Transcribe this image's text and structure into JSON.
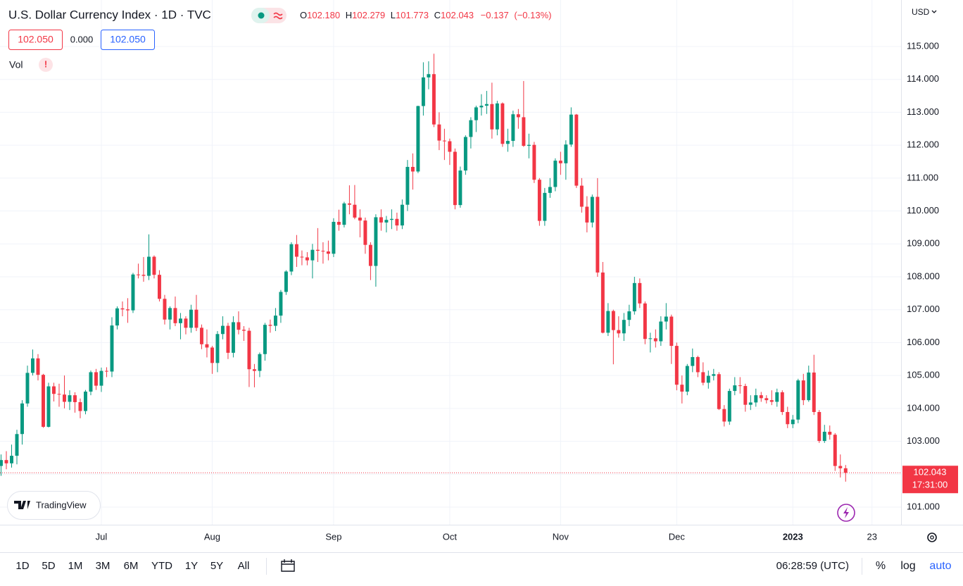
{
  "header": {
    "title": "U.S. Dollar Currency Index · 1D · TVC",
    "ohlc": [
      {
        "key": "O",
        "value": "102.180"
      },
      {
        "key": "H",
        "value": "102.279"
      },
      {
        "key": "L",
        "value": "101.773"
      },
      {
        "key": "C",
        "value": "102.043"
      }
    ],
    "change": "−0.137",
    "change_pct": "(−0.13%)"
  },
  "price_boxes": [
    "102.050",
    "0.000",
    "102.050"
  ],
  "indicator": {
    "name": "Vol",
    "alert": "!"
  },
  "currency": "USD",
  "brand": "TradingView",
  "chart_data": {
    "type": "candlestick",
    "up_color": "#089981",
    "down_color": "#f23645",
    "grid": true,
    "countdown": "17:31:00",
    "xlim": [
      -0.2,
      170.5
    ],
    "xticks": [
      {
        "value": 19,
        "label": "Jul"
      },
      {
        "value": 40,
        "label": "Aug"
      },
      {
        "value": 63,
        "label": "Sep"
      },
      {
        "value": 85,
        "label": "Oct"
      },
      {
        "value": 106,
        "label": "Nov"
      },
      {
        "value": 128,
        "label": "Dec"
      },
      {
        "value": 150,
        "label": "2023"
      },
      {
        "value": 165,
        "label": "23"
      }
    ],
    "ylim": [
      100.464,
      116.413
    ],
    "yticks": [
      {
        "value": 101,
        "label": "101.000"
      },
      {
        "value": 102,
        "label": "102.000"
      },
      {
        "value": 103,
        "label": "103.000"
      },
      {
        "value": 104,
        "label": "104.000"
      },
      {
        "value": 105,
        "label": "105.000"
      },
      {
        "value": 106,
        "label": "106.000"
      },
      {
        "value": 107,
        "label": "107.000"
      },
      {
        "value": 108,
        "label": "108.000"
      },
      {
        "value": 109,
        "label": "109.000"
      },
      {
        "value": 110,
        "label": "110.000"
      },
      {
        "value": 111,
        "label": "111.000"
      },
      {
        "value": 112,
        "label": "112.000"
      },
      {
        "value": 113,
        "label": "113.000"
      },
      {
        "value": 114,
        "label": "114.000"
      },
      {
        "value": 115,
        "label": "115.000"
      }
    ],
    "ohlc": [
      [
        102.25,
        102.6,
        101.95,
        102.43
      ],
      [
        102.43,
        102.7,
        102.15,
        102.33
      ],
      [
        102.33,
        102.9,
        102.2,
        102.56
      ],
      [
        102.56,
        103.35,
        102.3,
        103.22
      ],
      [
        103.22,
        104.25,
        102.9,
        104.15
      ],
      [
        104.15,
        105.3,
        104.05,
        105.08
      ],
      [
        105.08,
        105.79,
        105.0,
        105.52
      ],
      [
        105.52,
        105.65,
        104.85,
        105.02
      ],
      [
        105.02,
        105.05,
        103.41,
        103.44
      ],
      [
        103.44,
        104.78,
        103.42,
        104.67
      ],
      [
        104.67,
        104.78,
        104.21,
        104.44
      ],
      [
        104.44,
        104.75,
        104.05,
        104.42
      ],
      [
        104.42,
        105.0,
        104.0,
        104.2
      ],
      [
        104.2,
        104.55,
        103.95,
        104.4
      ],
      [
        104.4,
        104.49,
        103.87,
        104.19
      ],
      [
        104.19,
        104.3,
        103.7,
        103.92
      ],
      [
        103.92,
        104.56,
        103.82,
        104.51
      ],
      [
        104.51,
        105.15,
        104.4,
        105.1
      ],
      [
        105.1,
        105.2,
        104.56,
        104.69
      ],
      [
        104.69,
        105.24,
        104.5,
        105.14
      ],
      [
        105.14,
        105.25,
        104.95,
        105.12
      ],
      [
        105.12,
        106.77,
        104.95,
        106.52
      ],
      [
        106.52,
        107.1,
        106.4,
        107.04
      ],
      [
        107.04,
        107.25,
        106.8,
        107.01
      ],
      [
        107.01,
        107.35,
        106.6,
        106.98
      ],
      [
        106.98,
        108.12,
        106.9,
        108.07
      ],
      [
        108.07,
        108.4,
        107.95,
        108.06
      ],
      [
        108.06,
        108.6,
        107.85,
        108.03
      ],
      [
        108.03,
        109.29,
        107.9,
        108.61
      ],
      [
        108.61,
        108.65,
        107.95,
        108.06
      ],
      [
        108.06,
        108.2,
        107.25,
        107.33
      ],
      [
        107.33,
        107.45,
        106.55,
        106.7
      ],
      [
        106.7,
        107.1,
        106.4,
        107.05
      ],
      [
        107.05,
        107.4,
        106.5,
        106.59
      ],
      [
        106.59,
        106.9,
        106.1,
        106.73
      ],
      [
        106.73,
        106.8,
        106.25,
        106.45
      ],
      [
        106.45,
        107.15,
        106.3,
        107.0
      ],
      [
        107.0,
        107.45,
        106.35,
        106.45
      ],
      [
        106.45,
        106.55,
        105.8,
        105.95
      ],
      [
        105.95,
        106.4,
        105.55,
        105.85
      ],
      [
        105.85,
        105.9,
        105.05,
        105.38
      ],
      [
        105.38,
        106.35,
        105.1,
        106.26
      ],
      [
        106.26,
        106.8,
        106.1,
        106.51
      ],
      [
        106.51,
        106.6,
        105.5,
        105.69
      ],
      [
        105.69,
        106.8,
        105.55,
        106.62
      ],
      [
        106.62,
        106.95,
        106.25,
        106.39
      ],
      [
        106.39,
        106.5,
        106.05,
        106.36
      ],
      [
        106.36,
        106.45,
        104.65,
        105.19
      ],
      [
        105.19,
        105.35,
        104.64,
        105.14
      ],
      [
        105.14,
        105.7,
        104.95,
        105.65
      ],
      [
        105.65,
        106.6,
        105.45,
        106.54
      ],
      [
        106.54,
        106.7,
        106.3,
        106.51
      ],
      [
        106.51,
        107.05,
        106.35,
        106.82
      ],
      [
        106.82,
        107.6,
        106.6,
        107.54
      ],
      [
        107.54,
        108.2,
        107.45,
        108.16
      ],
      [
        108.16,
        109.05,
        108.05,
        108.99
      ],
      [
        108.99,
        109.27,
        108.3,
        108.61
      ],
      [
        108.61,
        108.8,
        108.35,
        108.59
      ],
      [
        108.59,
        108.75,
        108.35,
        108.5
      ],
      [
        108.5,
        109.0,
        107.95,
        108.82
      ],
      [
        108.82,
        109.48,
        108.45,
        108.79
      ],
      [
        108.79,
        109.05,
        108.4,
        108.77
      ],
      [
        108.77,
        109.1,
        108.5,
        108.7
      ],
      [
        108.7,
        109.78,
        108.6,
        109.67
      ],
      [
        109.67,
        110.04,
        109.4,
        109.58
      ],
      [
        109.58,
        110.28,
        109.5,
        110.23
      ],
      [
        110.23,
        110.78,
        109.9,
        110.19
      ],
      [
        110.19,
        110.79,
        109.75,
        109.8
      ],
      [
        109.8,
        110.05,
        109.2,
        109.71
      ],
      [
        109.71,
        109.8,
        108.7,
        108.97
      ],
      [
        108.97,
        109.05,
        107.9,
        108.33
      ],
      [
        108.33,
        109.9,
        107.7,
        109.81
      ],
      [
        109.81,
        110.05,
        109.4,
        109.65
      ],
      [
        109.65,
        109.85,
        109.35,
        109.73
      ],
      [
        109.73,
        110.05,
        109.45,
        109.76
      ],
      [
        109.76,
        109.95,
        109.4,
        109.56
      ],
      [
        109.56,
        110.35,
        109.45,
        110.19
      ],
      [
        110.19,
        111.55,
        110.0,
        111.34
      ],
      [
        111.34,
        111.75,
        110.65,
        111.2
      ],
      [
        111.2,
        113.2,
        111.15,
        113.19
      ],
      [
        113.19,
        114.52,
        112.9,
        114.06
      ],
      [
        114.06,
        114.55,
        113.7,
        114.16
      ],
      [
        114.16,
        114.78,
        112.55,
        112.63
      ],
      [
        112.63,
        113.0,
        111.85,
        112.14
      ],
      [
        112.14,
        112.5,
        111.55,
        112.12
      ],
      [
        112.12,
        112.2,
        111.4,
        111.8
      ],
      [
        111.8,
        111.9,
        110.05,
        110.18
      ],
      [
        110.18,
        111.35,
        110.1,
        111.23
      ],
      [
        111.23,
        112.3,
        111.1,
        112.25
      ],
      [
        112.25,
        112.85,
        111.9,
        112.76
      ],
      [
        112.76,
        113.2,
        112.4,
        113.15
      ],
      [
        113.15,
        113.55,
        112.9,
        113.2
      ],
      [
        113.2,
        113.65,
        112.95,
        113.25
      ],
      [
        113.25,
        113.9,
        112.2,
        112.48
      ],
      [
        112.48,
        113.35,
        112.3,
        113.27
      ],
      [
        113.27,
        113.3,
        111.95,
        112.04
      ],
      [
        112.04,
        112.5,
        111.8,
        112.13
      ],
      [
        112.13,
        113.05,
        111.95,
        112.94
      ],
      [
        112.94,
        113.1,
        112.5,
        112.85
      ],
      [
        112.85,
        113.95,
        111.95,
        111.98
      ],
      [
        111.98,
        112.35,
        111.6,
        112.01
      ],
      [
        112.01,
        112.1,
        110.85,
        110.95
      ],
      [
        110.95,
        111.0,
        109.55,
        109.7
      ],
      [
        109.7,
        110.7,
        109.55,
        110.55
      ],
      [
        110.55,
        111.0,
        110.4,
        110.73
      ],
      [
        110.73,
        111.6,
        110.6,
        111.53
      ],
      [
        111.53,
        111.8,
        111.1,
        111.45
      ],
      [
        111.45,
        112.15,
        110.95,
        112.02
      ],
      [
        112.02,
        113.15,
        111.95,
        112.93
      ],
      [
        112.93,
        112.95,
        110.7,
        110.77
      ],
      [
        110.77,
        111.0,
        109.95,
        110.13
      ],
      [
        110.13,
        110.45,
        109.35,
        109.65
      ],
      [
        109.65,
        110.5,
        109.5,
        110.43
      ],
      [
        110.43,
        111.0,
        108.0,
        108.13
      ],
      [
        108.13,
        108.45,
        106.28,
        106.3
      ],
      [
        106.3,
        107.2,
        106.2,
        106.96
      ],
      [
        106.96,
        107.0,
        105.34,
        106.38
      ],
      [
        106.38,
        106.8,
        106.15,
        106.28
      ],
      [
        106.28,
        106.9,
        106.05,
        106.69
      ],
      [
        106.69,
        107.15,
        106.5,
        106.95
      ],
      [
        106.95,
        108.0,
        106.85,
        107.81
      ],
      [
        107.81,
        107.95,
        107.05,
        107.19
      ],
      [
        107.19,
        107.25,
        105.95,
        106.11
      ],
      [
        106.11,
        106.3,
        105.7,
        106.13
      ],
      [
        106.13,
        106.4,
        105.85,
        106.04
      ],
      [
        106.04,
        106.8,
        105.9,
        106.64
      ],
      [
        106.64,
        107.2,
        106.4,
        106.79
      ],
      [
        106.79,
        106.85,
        105.35,
        105.9
      ],
      [
        105.9,
        106.0,
        104.55,
        104.72
      ],
      [
        104.72,
        105.0,
        104.15,
        104.51
      ],
      [
        104.51,
        105.35,
        104.4,
        105.29
      ],
      [
        105.29,
        105.82,
        105.1,
        105.56
      ],
      [
        105.56,
        105.6,
        104.95,
        105.1
      ],
      [
        105.1,
        105.4,
        104.7,
        104.78
      ],
      [
        104.78,
        105.15,
        104.6,
        104.99
      ],
      [
        104.99,
        105.2,
        104.85,
        105.04
      ],
      [
        105.04,
        105.1,
        103.95,
        103.98
      ],
      [
        103.98,
        104.1,
        103.45,
        103.6
      ],
      [
        103.6,
        104.6,
        103.5,
        104.53
      ],
      [
        104.53,
        104.95,
        104.4,
        104.7
      ],
      [
        104.7,
        104.95,
        104.45,
        104.68
      ],
      [
        104.68,
        104.75,
        103.9,
        104.11
      ],
      [
        104.11,
        104.4,
        103.95,
        104.18
      ],
      [
        104.18,
        104.6,
        104.05,
        104.4
      ],
      [
        104.4,
        104.5,
        104.2,
        104.31
      ],
      [
        104.31,
        104.4,
        104.15,
        104.25
      ],
      [
        104.25,
        104.55,
        104.1,
        104.2
      ],
      [
        104.2,
        104.6,
        104.05,
        104.49
      ],
      [
        104.49,
        104.55,
        103.8,
        103.89
      ],
      [
        103.89,
        104.05,
        103.4,
        103.52
      ],
      [
        103.52,
        103.8,
        103.4,
        103.66
      ],
      [
        103.66,
        104.9,
        103.55,
        104.85
      ],
      [
        104.85,
        105.05,
        104.1,
        104.25
      ],
      [
        104.25,
        105.3,
        104.2,
        105.09
      ],
      [
        105.09,
        105.63,
        103.8,
        103.89
      ],
      [
        103.89,
        103.95,
        102.95,
        103.01
      ],
      [
        103.01,
        103.5,
        102.95,
        103.29
      ],
      [
        103.29,
        103.48,
        103.05,
        103.2
      ],
      [
        103.2,
        103.25,
        102.1,
        102.25
      ],
      [
        102.25,
        102.6,
        101.9,
        102.18
      ],
      [
        102.18,
        102.279,
        101.773,
        102.043
      ]
    ]
  },
  "toolbar": {
    "ranges": [
      "1D",
      "5D",
      "1M",
      "3M",
      "6M",
      "YTD",
      "1Y",
      "5Y",
      "All"
    ],
    "clock": "06:28:59 (UTC)",
    "percent": "%",
    "log": "log",
    "auto": "auto"
  }
}
